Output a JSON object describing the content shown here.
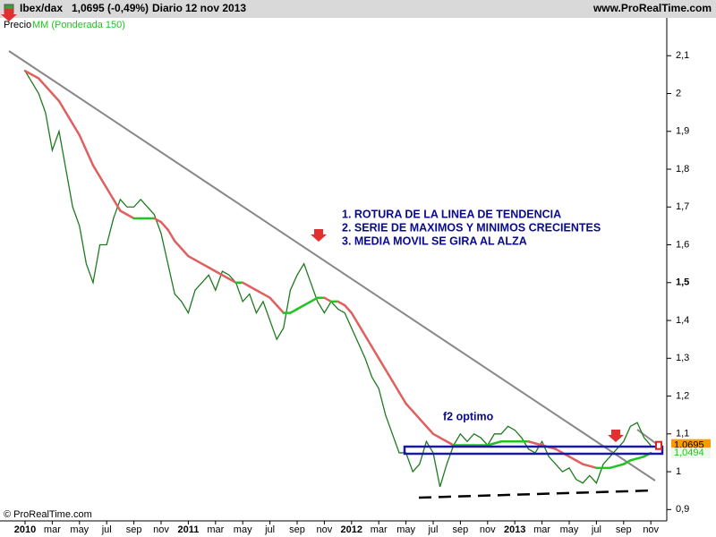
{
  "header": {
    "symbol": "Ibex/dax",
    "price": "1,0695 (-0,49%)",
    "period": "Diario",
    "date": "12 nov 2013",
    "site": "www.ProRealTime.com"
  },
  "chart_data": {
    "type": "line",
    "legend": {
      "price": "Precio"
    },
    "categories": [
      "2010",
      null,
      null,
      null,
      "mar",
      null,
      null,
      null,
      "may",
      null,
      null,
      null,
      "jul",
      null,
      null,
      null,
      "sep",
      null,
      null,
      null,
      "nov",
      null,
      null,
      null,
      "2011",
      null,
      null,
      null,
      "mar",
      null,
      null,
      null,
      "may",
      null,
      null,
      null,
      "jul",
      null,
      null,
      null,
      "sep",
      null,
      null,
      null,
      "nov",
      null,
      null,
      null,
      "2012",
      null,
      null,
      null,
      "mar",
      null,
      null,
      null,
      "may",
      null,
      null,
      null,
      "jul",
      null,
      null,
      null,
      "sep",
      null,
      null,
      null,
      "nov",
      null,
      null,
      null,
      "2013",
      null,
      null,
      null,
      "mar",
      null,
      null,
      null,
      "may",
      null,
      null,
      null,
      "jul",
      null,
      null,
      null,
      "sep",
      null,
      null,
      null,
      "nov"
    ],
    "series": [
      {
        "name": "Precio",
        "color": "#1f7a1f",
        "values": [
          2.06,
          2.03,
          2.0,
          1.95,
          1.85,
          1.9,
          1.8,
          1.7,
          1.65,
          1.55,
          1.5,
          1.6,
          1.6,
          1.67,
          1.72,
          1.7,
          1.7,
          1.72,
          1.7,
          1.68,
          1.63,
          1.55,
          1.47,
          1.45,
          1.42,
          1.48,
          1.5,
          1.52,
          1.48,
          1.53,
          1.52,
          1.5,
          1.45,
          1.47,
          1.42,
          1.45,
          1.4,
          1.35,
          1.38,
          1.48,
          1.52,
          1.55,
          1.5,
          1.45,
          1.42,
          1.45,
          1.43,
          1.42,
          1.38,
          1.34,
          1.3,
          1.25,
          1.22,
          1.15,
          1.1,
          1.05,
          1.05,
          1.0,
          1.02,
          1.08,
          1.05,
          0.96,
          1.02,
          1.07,
          1.1,
          1.08,
          1.1,
          1.09,
          1.07,
          1.1,
          1.1,
          1.12,
          1.11,
          1.09,
          1.06,
          1.05,
          1.08,
          1.04,
          1.02,
          1.0,
          1.01,
          0.98,
          0.97,
          0.99,
          0.97,
          1.02,
          1.04,
          1.06,
          1.08,
          1.12,
          1.13,
          1.09,
          1.0695
        ]
      },
      {
        "name": "MM (Ponderada 150)",
        "color": "#e06060",
        "rising_color": "#22c422",
        "values": [
          2.06,
          2.05,
          2.04,
          2.02,
          2.0,
          1.98,
          1.95,
          1.92,
          1.89,
          1.85,
          1.81,
          1.78,
          1.75,
          1.72,
          1.69,
          1.68,
          1.67,
          1.67,
          1.67,
          1.67,
          1.66,
          1.64,
          1.61,
          1.59,
          1.57,
          1.56,
          1.55,
          1.54,
          1.53,
          1.52,
          1.51,
          1.5,
          1.5,
          1.49,
          1.48,
          1.47,
          1.46,
          1.44,
          1.42,
          1.42,
          1.43,
          1.44,
          1.45,
          1.46,
          1.46,
          1.45,
          1.45,
          1.44,
          1.42,
          1.39,
          1.36,
          1.33,
          1.3,
          1.27,
          1.24,
          1.21,
          1.18,
          1.16,
          1.14,
          1.12,
          1.1,
          1.09,
          1.08,
          1.07,
          1.07,
          1.07,
          1.07,
          1.07,
          1.07,
          1.075,
          1.08,
          1.08,
          1.08,
          1.08,
          1.08,
          1.075,
          1.07,
          1.065,
          1.06,
          1.05,
          1.04,
          1.03,
          1.02,
          1.015,
          1.01,
          1.01,
          1.01,
          1.015,
          1.02,
          1.03,
          1.035,
          1.04,
          1.0494
        ]
      }
    ],
    "last_labels": [
      {
        "value": 1.0695,
        "label": "1,0695",
        "color": "#ff9900"
      },
      {
        "value": 1.0494,
        "label": "1,0494",
        "color": "#22c422"
      }
    ],
    "ylim": [
      0.87,
      2.2
    ],
    "yticks": [
      {
        "value": 0.9,
        "label": "0,9"
      },
      1,
      {
        "value": 1.1,
        "label": "1,1"
      },
      {
        "value": 1.2,
        "label": "1,2"
      },
      {
        "value": 1.3,
        "label": "1,3"
      },
      {
        "value": 1.4,
        "label": "1,4"
      },
      {
        "value": 1.5,
        "label": "1,5"
      },
      {
        "value": 1.6,
        "label": "1,6"
      },
      {
        "value": 1.7,
        "label": "1,7"
      },
      {
        "value": 1.8,
        "label": "1,8"
      },
      {
        "value": 1.9,
        "label": "1,9"
      },
      2,
      {
        "value": 2.1,
        "label": "2,1"
      }
    ],
    "annotations": [
      "1. ROTURA DE LA LINEA DE TENDENCIA",
      "2. SERIE DE MAXIMOS Y MINIMOS CRECIENTES",
      "3. MEDIA MOVIL SE GIRA AL ALZA",
      "f2 optimo"
    ],
    "copyright": "© ProRealTime.com"
  }
}
